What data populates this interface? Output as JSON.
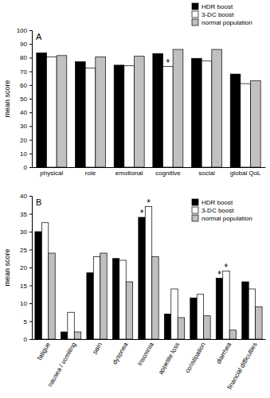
{
  "chart_data": [
    {
      "type": "bar",
      "title": "A",
      "y_label": "mean score",
      "categories": [
        "physical",
        "role",
        "emotional",
        "cognitive",
        "social",
        "global QoL"
      ],
      "series": [
        {
          "name": "HDR boost",
          "color": "#000000",
          "values": [
            83.5,
            77,
            74.5,
            83,
            79.5,
            68
          ]
        },
        {
          "name": "3-DC boost",
          "color": "#ffffff",
          "values": [
            80.5,
            72.5,
            74,
            73.5,
            77.5,
            61
          ]
        },
        {
          "name": "normal population",
          "color": "#c0c0c0",
          "values": [
            81.5,
            80.5,
            81,
            86,
            86,
            63
          ]
        }
      ],
      "ylim": [
        0,
        100
      ],
      "yticks": [
        0,
        10,
        20,
        30,
        40,
        50,
        60,
        70,
        80,
        90,
        100
      ],
      "legend": "top",
      "annotations": [
        {
          "text": "*",
          "category": "cognitive",
          "series": "3-DC boost"
        }
      ]
    },
    {
      "type": "bar",
      "title": "B",
      "y_label": "mean score",
      "categories": [
        "fatigue",
        "nausea / vomiting",
        "pain",
        "dyspnea",
        "insomnia",
        "appetite loss",
        "constipation",
        "diarrhea",
        "financial difficulties"
      ],
      "series": [
        {
          "name": "HDR boost",
          "color": "#000000",
          "values": [
            30,
            2,
            18.5,
            22.5,
            34,
            7,
            11.5,
            17,
            16
          ]
        },
        {
          "name": "3-DC boost",
          "color": "#ffffff",
          "values": [
            32.5,
            7.5,
            23,
            22,
            37,
            14,
            12.5,
            19,
            14
          ]
        },
        {
          "name": "normal population",
          "color": "#c0c0c0",
          "values": [
            24,
            2,
            24,
            16,
            23,
            6,
            6.5,
            2.5,
            9
          ]
        }
      ],
      "ylim": [
        0,
        40
      ],
      "yticks": [
        0,
        5,
        10,
        15,
        20,
        25,
        30,
        35,
        40
      ],
      "legend": "upper right",
      "annotations": [
        {
          "text": "*",
          "category": "insomnia",
          "series": "HDR boost"
        },
        {
          "text": "*",
          "category": "insomnia",
          "series": "3-DC boost"
        },
        {
          "text": "*",
          "category": "diarrhea",
          "series": "HDR boost"
        },
        {
          "text": "*",
          "category": "diarrhea",
          "series": "3-DC boost"
        }
      ]
    }
  ]
}
